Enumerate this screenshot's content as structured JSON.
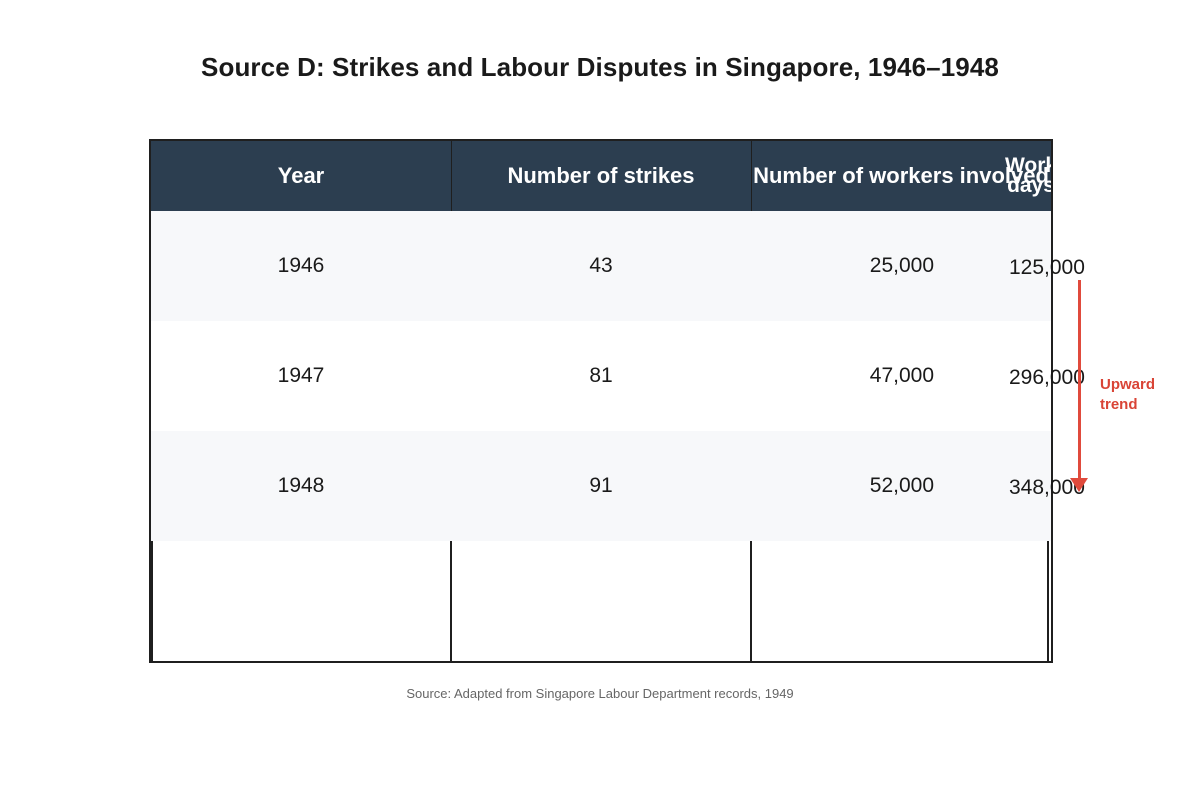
{
  "title": "Source D: Strikes and Labour Disputes in Singapore, 1946–1948",
  "table": {
    "headers": [
      "Year",
      "Number of strikes",
      "Number of workers involved",
      "Working days lost"
    ],
    "header_days_visible": [
      "Work",
      "days"
    ],
    "rows": [
      {
        "year": "1946",
        "strikes": "43",
        "workers": "25,000",
        "days": "125,000"
      },
      {
        "year": "1947",
        "strikes": "81",
        "workers": "47,000",
        "days": "296,000"
      },
      {
        "year": "1948",
        "strikes": "91",
        "workers": "52,000",
        "days": "348,000"
      }
    ]
  },
  "annotation": {
    "label": "Upward trend",
    "color": "#e04a3c",
    "icon": "arrow-down-icon"
  },
  "source_note": "Source: Adapted from Singapore Labour Department records, 1949",
  "colors": {
    "header_bg": "#2c3e50",
    "row_bg": "#f7f8fa",
    "alt_row_bg": "#ffffff",
    "border": "#1f1f1f"
  }
}
